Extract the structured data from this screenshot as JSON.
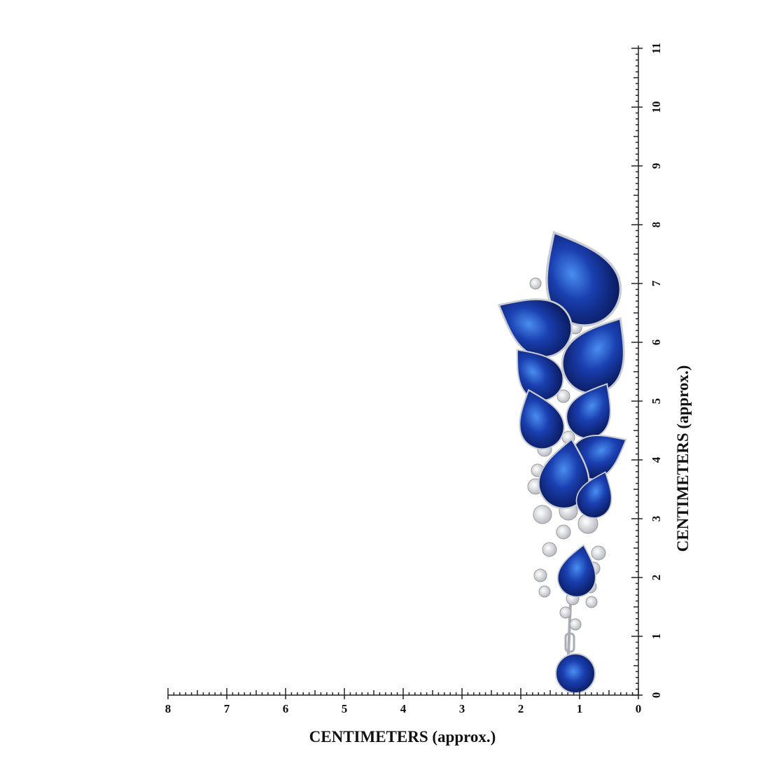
{
  "ruler": {
    "x_axis": {
      "label": "CENTIMETERS (approx.)",
      "ticks": [
        0,
        1,
        2,
        3,
        4,
        5,
        6,
        7,
        8
      ]
    },
    "y_axis": {
      "label": "CENTIMETERS (approx.)",
      "ticks": [
        0,
        1,
        2,
        3,
        4,
        5,
        6,
        7,
        8,
        9,
        10,
        11
      ]
    }
  }
}
